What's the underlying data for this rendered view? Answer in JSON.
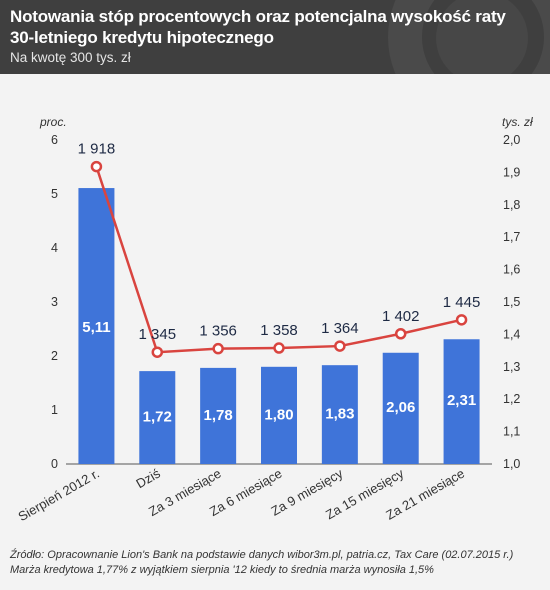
{
  "header": {
    "title": "Notowania stóp procentowych oraz potencjalna wysokość raty 30-letniego kredytu hipotecznego",
    "subtitle": "Na kwotę 300 tys. zł"
  },
  "footer": {
    "source": "Źródło: Opracownanie Lion's Bank na podstawie danych wibor3m.pl, patria.cz, Tax Care (02.07.2015 r.)",
    "note": "Marża kredytowa 1,77% z wyjątkiem sierpnia '12 kiedy to średnia marża wynosiła 1,5%"
  },
  "chart_data": {
    "type": "bar",
    "categories": [
      "Sierpień 2012 r.",
      "Dziś",
      "Za 3 miesiące",
      "Za 6 miesiące",
      "Za 9 miesięcy",
      "Za 15 miesięcy",
      "Za 21 miesiące"
    ],
    "series": [
      {
        "type": "bar",
        "axis": "left",
        "values": [
          5.11,
          1.72,
          1.78,
          1.8,
          1.83,
          2.06,
          2.31
        ],
        "labels": [
          "5,11",
          "1,72",
          "1,78",
          "1,80",
          "1,83",
          "2,06",
          "2,31"
        ],
        "color": "#3f74d9"
      },
      {
        "type": "line",
        "axis": "right",
        "values": [
          1.918,
          1.345,
          1.356,
          1.358,
          1.364,
          1.402,
          1.445
        ],
        "labels": [
          "1 918",
          "1 345",
          "1 356",
          "1 358",
          "1 364",
          "1 402",
          "1 445"
        ],
        "color": "#d9443f"
      }
    ],
    "y_left": {
      "label": "proc.",
      "min": 0,
      "max": 6,
      "ticks": [
        "0",
        "1",
        "2",
        "3",
        "4",
        "5",
        "6"
      ]
    },
    "y_right": {
      "label": "tys. zł",
      "min": 1.0,
      "max": 2.0,
      "ticks": [
        "1,0",
        "1,1",
        "1,2",
        "1,3",
        "1,4",
        "1,5",
        "1,6",
        "1,7",
        "1,8",
        "1,9",
        "2,0"
      ]
    },
    "grid": false,
    "legend": "none"
  }
}
